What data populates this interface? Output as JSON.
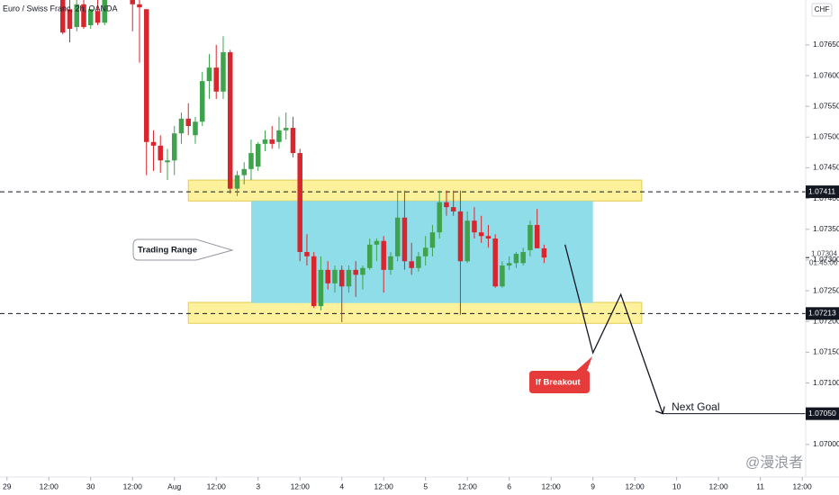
{
  "chart_data": {
    "type": "candlestick",
    "title": "Euro / Swiss Franc, 2h, OANDA",
    "currency": "CHF",
    "watermark": "@漫浪者",
    "up_color": "#3fa34d",
    "down_color": "#d7262e",
    "x": [
      16,
      18,
      20,
      22,
      24,
      26,
      28,
      36,
      38,
      40,
      42,
      44,
      46,
      48,
      50,
      52,
      54,
      56,
      58,
      60,
      62,
      64,
      66,
      68,
      70,
      72,
      74,
      76,
      78,
      80,
      82,
      84,
      86,
      88,
      90,
      92,
      94,
      96,
      98,
      100,
      102,
      104,
      106,
      108,
      110,
      112,
      114,
      116,
      118,
      120,
      122,
      124,
      126,
      128,
      130,
      132,
      134,
      136,
      138,
      140,
      142,
      144,
      146,
      148,
      150,
      152,
      154
    ],
    "open": [
      1.07723,
      1.07708,
      1.07679,
      1.07716,
      1.07682,
      1.07705,
      1.07686,
      1.07723,
      1.07716,
      1.07708,
      1.07492,
      1.07486,
      1.07459,
      1.07462,
      1.07506,
      1.0753,
      1.07503,
      1.07525,
      1.07591,
      1.07613,
      1.07574,
      1.07638,
      1.07416,
      1.07438,
      1.07448,
      1.07452,
      1.07489,
      1.07496,
      1.07492,
      1.07511,
      1.07515,
      1.07474,
      1.07313,
      1.07306,
      1.07225,
      1.07284,
      1.07262,
      1.07284,
      1.07257,
      1.07284,
      1.07276,
      1.07287,
      1.07325,
      1.07331,
      1.07284,
      1.07306,
      1.07369,
      1.07298,
      1.07287,
      1.07306,
      1.0732,
      1.07345,
      1.07394,
      1.07386,
      1.07379,
      1.07298,
      1.07364,
      1.07345,
      1.07339,
      1.07335,
      1.07257,
      1.07291,
      1.07295,
      1.07295,
      1.07316,
      1.07357,
      1.07319
    ],
    "high": [
      1.0773,
      1.07723,
      1.07723,
      1.07723,
      1.07708,
      1.07723,
      1.0773,
      1.0773,
      1.07723,
      1.07708,
      1.07511,
      1.07503,
      1.07481,
      1.07518,
      1.0754,
      1.07555,
      1.07533,
      1.07606,
      1.07635,
      1.0765,
      1.07664,
      1.07642,
      1.07445,
      1.07459,
      1.07496,
      1.07492,
      1.07511,
      1.07518,
      1.07533,
      1.0754,
      1.07533,
      1.07481,
      1.07342,
      1.07313,
      1.07306,
      1.07298,
      1.07291,
      1.07291,
      1.07291,
      1.07298,
      1.07291,
      1.07335,
      1.07335,
      1.07339,
      1.07313,
      1.07413,
      1.07413,
      1.07328,
      1.07313,
      1.07339,
      1.07357,
      1.07413,
      1.07413,
      1.07413,
      1.07413,
      1.07379,
      1.07386,
      1.07372,
      1.07357,
      1.07342,
      1.07298,
      1.07306,
      1.07313,
      1.0732,
      1.07364,
      1.07383,
      1.07325
    ],
    "low": [
      1.07667,
      1.07654,
      1.07672,
      1.07676,
      1.07676,
      1.07682,
      1.07682,
      1.07672,
      1.07621,
      1.07438,
      1.07445,
      1.07442,
      1.0743,
      1.07438,
      1.07489,
      1.07503,
      1.07489,
      1.07518,
      1.07562,
      1.07562,
      1.07562,
      1.07408,
      1.07404,
      1.07423,
      1.0743,
      1.07445,
      1.07477,
      1.07481,
      1.07481,
      1.07496,
      1.07467,
      1.07298,
      1.07291,
      1.07222,
      1.07218,
      1.07252,
      1.07247,
      1.07199,
      1.07247,
      1.0724,
      1.07252,
      1.07284,
      1.07298,
      1.07247,
      1.07276,
      1.07298,
      1.07284,
      1.07276,
      1.07281,
      1.07291,
      1.07306,
      1.07335,
      1.07372,
      1.07372,
      1.07211,
      1.07295,
      1.07335,
      1.07328,
      1.0732,
      1.07255,
      1.07255,
      1.07284,
      1.07287,
      1.07291,
      1.07306,
      1.07319,
      1.07295
    ],
    "close": [
      1.0767,
      1.07676,
      1.07716,
      1.07679,
      1.07708,
      1.07686,
      1.07723,
      1.07716,
      1.07711,
      1.07492,
      1.07486,
      1.07462,
      1.07462,
      1.07506,
      1.0753,
      1.07518,
      1.07525,
      1.07591,
      1.07613,
      1.07574,
      1.07638,
      1.07416,
      1.07438,
      1.07448,
      1.07474,
      1.07489,
      1.07496,
      1.07489,
      1.07511,
      1.07515,
      1.07474,
      1.07313,
      1.07306,
      1.07225,
      1.07284,
      1.07262,
      1.07284,
      1.07257,
      1.07284,
      1.07276,
      1.07287,
      1.07325,
      1.07331,
      1.07284,
      1.07306,
      1.07369,
      1.07298,
      1.07287,
      1.07306,
      1.0732,
      1.07345,
      1.07394,
      1.07386,
      1.07379,
      1.07298,
      1.07364,
      1.07345,
      1.07339,
      1.07335,
      1.07257,
      1.07291,
      1.07295,
      1.0731,
      1.07313,
      1.07357,
      1.07319,
      1.07304
    ],
    "xlim": [
      -2,
      229
    ],
    "ylim": [
      1.06947,
      1.07723
    ],
    "xticks": [
      {
        "value": 0,
        "label": "29"
      },
      {
        "value": 12,
        "label": "12:00"
      },
      {
        "value": 24,
        "label": "30"
      },
      {
        "value": 36,
        "label": "12:00"
      },
      {
        "value": 48,
        "label": "Aug"
      },
      {
        "value": 60,
        "label": "12:00"
      },
      {
        "value": 72,
        "label": "3"
      },
      {
        "value": 84,
        "label": "12:00"
      },
      {
        "value": 96,
        "label": "4"
      },
      {
        "value": 108,
        "label": "12:00"
      },
      {
        "value": 120,
        "label": "5"
      },
      {
        "value": 132,
        "label": "12:00"
      },
      {
        "value": 144,
        "label": "6"
      },
      {
        "value": 156,
        "label": "12:00"
      },
      {
        "value": 168,
        "label": "9"
      },
      {
        "value": 180,
        "label": "12:00"
      },
      {
        "value": 192,
        "label": "10"
      },
      {
        "value": 204,
        "label": "12:00"
      },
      {
        "value": 216,
        "label": "11"
      },
      {
        "value": 228,
        "label": "12:00"
      }
    ],
    "yticks": [
      {
        "value": 1.07,
        "label": "1.07000"
      },
      {
        "value": 1.0705,
        "label": "1.07050"
      },
      {
        "value": 1.071,
        "label": "1.07100"
      },
      {
        "value": 1.0715,
        "label": "1.07150"
      },
      {
        "value": 1.072,
        "label": "1.07200"
      },
      {
        "value": 1.0725,
        "label": "1.07250"
      },
      {
        "value": 1.073,
        "label": "1.07300"
      },
      {
        "value": 1.0735,
        "label": "1.07350"
      },
      {
        "value": 1.074,
        "label": "1.07400"
      },
      {
        "value": 1.0745,
        "label": "1.07450"
      },
      {
        "value": 1.075,
        "label": "1.07500"
      },
      {
        "value": 1.0755,
        "label": "1.07550"
      },
      {
        "value": 1.076,
        "label": "1.07600"
      },
      {
        "value": 1.0765,
        "label": "1.07650"
      }
    ],
    "levels": [
      1.07411,
      1.07213
    ],
    "current": {
      "value": 1.07304,
      "countdown": "01:45:06"
    },
    "zones": [
      {
        "x": [
          52,
          182
        ],
        "y": [
          1.07396,
          1.0743
        ]
      },
      {
        "x": [
          52,
          182
        ],
        "y": [
          1.07197,
          1.07231
        ]
      }
    ],
    "range_box": {
      "x": [
        70,
        168
      ],
      "y": [
        1.0723,
        1.07396
      ],
      "label": "Trading Range"
    },
    "breakout": {
      "text": "If Breakout",
      "x": [
        160,
        168,
        176,
        188
      ],
      "y": [
        1.07325,
        1.07149,
        1.07244,
        1.0705
      ]
    },
    "goal": {
      "value": {
        "value": 1.0705,
        "label": "1.07050"
      },
      "text": "Next Goal"
    }
  }
}
